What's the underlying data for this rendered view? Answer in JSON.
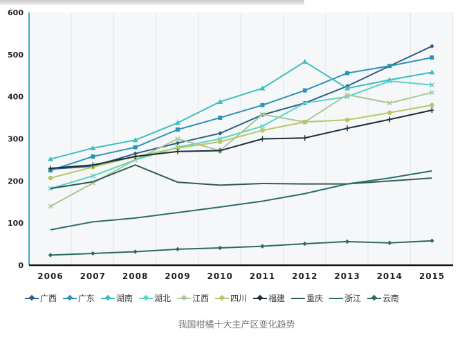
{
  "chart_data": {
    "type": "line",
    "title": "",
    "caption": "我国柑橘十大主产区变化趋势",
    "xlabel": "",
    "ylabel": "",
    "ylim": [
      0,
      600
    ],
    "yticks": [
      "0",
      "100",
      "200",
      "300",
      "400",
      "500",
      "600"
    ],
    "categories": [
      "2006",
      "2007",
      "2008",
      "2009",
      "2010",
      "2011",
      "2012",
      "2013",
      "2014",
      "2015"
    ],
    "legend_position": "bottom",
    "series": [
      {
        "name": "广西",
        "color": "#2e5f86",
        "marker": "diamond",
        "values": [
          228,
          235,
          265,
          290,
          313,
          357,
          385,
          425,
          473,
          520
        ]
      },
      {
        "name": "广东",
        "color": "#2b93b6",
        "marker": "square",
        "values": [
          225,
          258,
          280,
          322,
          350,
          380,
          415,
          456,
          473,
          493
        ]
      },
      {
        "name": "湖南",
        "color": "#3cbfbf",
        "marker": "triangle",
        "values": [
          252,
          278,
          297,
          338,
          388,
          420,
          483,
          420,
          440,
          458
        ]
      },
      {
        "name": "湖北",
        "color": "#5ad3c8",
        "marker": "x",
        "values": [
          182,
          212,
          250,
          280,
          300,
          330,
          385,
          400,
          437,
          428
        ]
      },
      {
        "name": "江西",
        "color": "#a9c89a",
        "marker": "x",
        "values": [
          140,
          195,
          250,
          300,
          272,
          358,
          340,
          405,
          385,
          410
        ]
      },
      {
        "name": "四川",
        "color": "#b8c763",
        "marker": "circle",
        "values": [
          207,
          233,
          258,
          278,
          293,
          320,
          340,
          345,
          362,
          380
        ]
      },
      {
        "name": "福建",
        "color": "#1c2d3a",
        "marker": "plus",
        "values": [
          230,
          238,
          258,
          270,
          272,
          300,
          302,
          325,
          346,
          368
        ]
      },
      {
        "name": "重庆",
        "color": "#2d5d5a",
        "marker": "none",
        "values": [
          182,
          198,
          238,
          197,
          190,
          194,
          193,
          193,
          200,
          207
        ]
      },
      {
        "name": "浙江",
        "color": "#2a6e6a",
        "marker": "none",
        "values": [
          84,
          103,
          112,
          125,
          138,
          152,
          170,
          193,
          207,
          224
        ]
      },
      {
        "name": "云南",
        "color": "#2d6b5e",
        "marker": "diamond",
        "values": [
          24,
          28,
          32,
          38,
          41,
          45,
          51,
          56,
          53,
          58
        ]
      }
    ]
  }
}
